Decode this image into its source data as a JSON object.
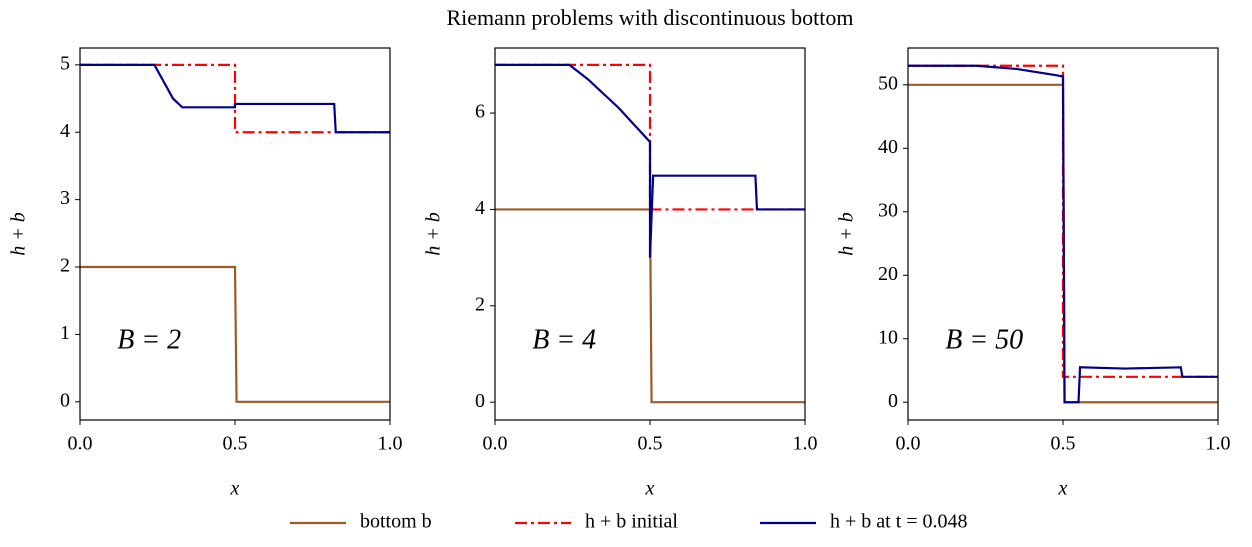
{
  "title": "Riemann problems with discontinuous bottom",
  "chart_data": [
    {
      "type": "line",
      "annotation": "B = 2",
      "xlabel": "x",
      "ylabel": "h + b",
      "xlim": [
        0,
        1
      ],
      "ylim": [
        -0.27,
        5.25
      ],
      "xticks": [
        {
          "value": 0,
          "label": "0.0"
        },
        0.5,
        {
          "value": 1,
          "label": "1.0"
        }
      ],
      "yticks": [
        0,
        1,
        2,
        3,
        4,
        5
      ],
      "series": [
        {
          "name": "bottom b",
          "color": "#9a5b2a",
          "linestyle": "solid",
          "x": [
            0,
            0.5,
            0.505,
            1
          ],
          "values": [
            2,
            2,
            0,
            0
          ]
        },
        {
          "name": "h + b initial",
          "color": "#ff0000",
          "linestyle": "dashdot",
          "x": [
            0,
            0.5,
            0.5,
            1
          ],
          "values": [
            5,
            5,
            4,
            4
          ]
        },
        {
          "name": "h + b at t = 0.048",
          "color": "#00008b",
          "linestyle": "solid",
          "x": [
            0,
            0.24,
            0.3,
            0.33,
            0.5,
            0.5,
            0.82,
            0.825,
            1
          ],
          "values": [
            5,
            5,
            4.5,
            4.37,
            4.37,
            4.42,
            4.42,
            4,
            4
          ]
        }
      ]
    },
    {
      "type": "line",
      "annotation": "B = 4",
      "xlabel": "x",
      "ylabel": "h + b",
      "xlim": [
        0,
        1
      ],
      "ylim": [
        -0.37,
        7.35
      ],
      "xticks": [
        {
          "value": 0,
          "label": "0.0"
        },
        0.5,
        {
          "value": 1,
          "label": "1.0"
        }
      ],
      "yticks": [
        0,
        2,
        4,
        6
      ],
      "series": [
        {
          "name": "bottom b",
          "color": "#9a5b2a",
          "linestyle": "solid",
          "x": [
            0,
            0.5,
            0.505,
            1
          ],
          "values": [
            4,
            4,
            0,
            0
          ]
        },
        {
          "name": "h + b initial",
          "color": "#ff0000",
          "linestyle": "dashdot",
          "x": [
            0,
            0.5,
            0.5,
            1
          ],
          "values": [
            7,
            7,
            4,
            4
          ]
        },
        {
          "name": "h + b at t = 0.048",
          "color": "#00008b",
          "linestyle": "solid",
          "x": [
            0,
            0.24,
            0.3,
            0.4,
            0.45,
            0.5,
            0.5,
            0.51,
            0.84,
            0.845,
            1
          ],
          "values": [
            7,
            7,
            6.7,
            6.1,
            5.75,
            5.4,
            3,
            4.7,
            4.7,
            4,
            4
          ]
        }
      ]
    },
    {
      "type": "line",
      "annotation": "B = 50",
      "xlabel": "x",
      "ylabel": "h + b",
      "xlim": [
        0,
        1
      ],
      "ylim": [
        -2.8,
        55.8
      ],
      "xticks": [
        {
          "value": 0,
          "label": "0.0"
        },
        0.5,
        {
          "value": 1,
          "label": "1.0"
        }
      ],
      "yticks": [
        0,
        10,
        20,
        30,
        40,
        50
      ],
      "series": [
        {
          "name": "bottom b",
          "color": "#9a5b2a",
          "linestyle": "solid",
          "x": [
            0,
            0.5,
            0.505,
            1
          ],
          "values": [
            50,
            50,
            0,
            0
          ]
        },
        {
          "name": "h + b initial",
          "color": "#ff0000",
          "linestyle": "dashdot",
          "x": [
            0,
            0.5,
            0.5,
            1
          ],
          "values": [
            53,
            53,
            4,
            4
          ]
        },
        {
          "name": "h + b at t = 0.048",
          "color": "#00008b",
          "linestyle": "solid",
          "x": [
            0,
            0.22,
            0.35,
            0.48,
            0.5,
            0.505,
            0.55,
            0.555,
            0.7,
            0.88,
            0.885,
            1
          ],
          "values": [
            53,
            53,
            52.5,
            51.5,
            51.3,
            0,
            0,
            5.5,
            5.3,
            5.5,
            4,
            4
          ]
        }
      ]
    }
  ]
}
